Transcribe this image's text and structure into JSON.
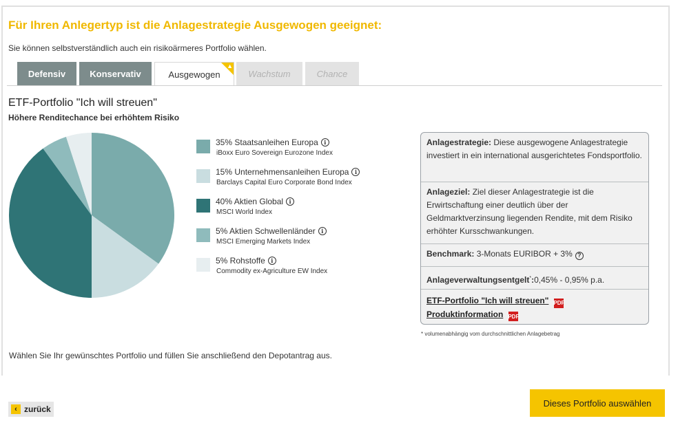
{
  "header": {
    "headline": "Für Ihren Anlegertyp ist die Anlagestrategie Ausgewogen geeignet:",
    "subline": "Sie können selbstverständlich auch ein risikoärmeres Portfolio wählen."
  },
  "tabs": [
    {
      "label": "Defensiv",
      "state": "dark"
    },
    {
      "label": "Konservativ",
      "state": "dark"
    },
    {
      "label": "Ausgewogen",
      "state": "active",
      "badge_icon": "thumbs-up-icon"
    },
    {
      "label": "Wachstum",
      "state": "disabled"
    },
    {
      "label": "Chance",
      "state": "disabled"
    }
  ],
  "portfolio": {
    "title": "ETF-Portfolio \"Ich will streuen\"",
    "subtitle": "Höhere Renditechance bei erhöhtem Risiko"
  },
  "allocation": [
    {
      "label": "35% Staatsanleihen Europa",
      "index": "iBoxx Euro Sovereign Eurozone Index",
      "percent": 35,
      "color": "#7aabab"
    },
    {
      "label": "15% Unternehmensanleihen Europa",
      "index": "Barclays Capital Euro Corporate Bond Index",
      "percent": 15,
      "color": "#c9dde0"
    },
    {
      "label": "40% Aktien Global",
      "index": "MSCI World Index",
      "percent": 40,
      "color": "#2f7476"
    },
    {
      "label": "5% Aktien Schwellenländer",
      "index": "MSCI Emerging Markets Index",
      "percent": 5,
      "color": "#8fbbbc"
    },
    {
      "label": "5% Rohstoffe",
      "index": "Commodity ex-Agriculture EW Index",
      "percent": 5,
      "color": "#e7eef0"
    }
  ],
  "infobox": {
    "strategy_label": "Anlagestrategie:",
    "strategy_text": "Diese ausgewogene Anlagestrategie investiert in ein international ausgerichtetes Fondsportfolio.",
    "goal_label": "Anlageziel:",
    "goal_text": "Ziel dieser Anlagestrategie ist die Erwirtschaftung einer deutlich über der Geldmarktverzinsung liegenden Rendite, mit dem Risiko erhöhter Kursschwankungen.",
    "benchmark_label": "Benchmark:",
    "benchmark_text": "3-Monats EURIBOR + 3%",
    "fee_label": "Anlageverwaltungsentgelt",
    "fee_marker": "*",
    "fee_colon": ":",
    "fee_text": "0,45% - 0,95% p.a.",
    "link1": "ETF-Portfolio \"Ich will streuen\"",
    "link2": "Produktinformation",
    "pdf_text": "PDF"
  },
  "footnote": "* volumenabhängig vom durchschnittlichen Anlagebetrag",
  "bottom_text": "Wählen Sie Ihr gewünschtes Portfolio und füllen Sie anschließend den Depotantrag aus.",
  "buttons": {
    "back_label": "zurück",
    "select_label": "Dieses Portfolio auswählen"
  },
  "icons": {
    "info": "i",
    "question": "?",
    "chevron_left": "‹",
    "thumb": "👍"
  }
}
